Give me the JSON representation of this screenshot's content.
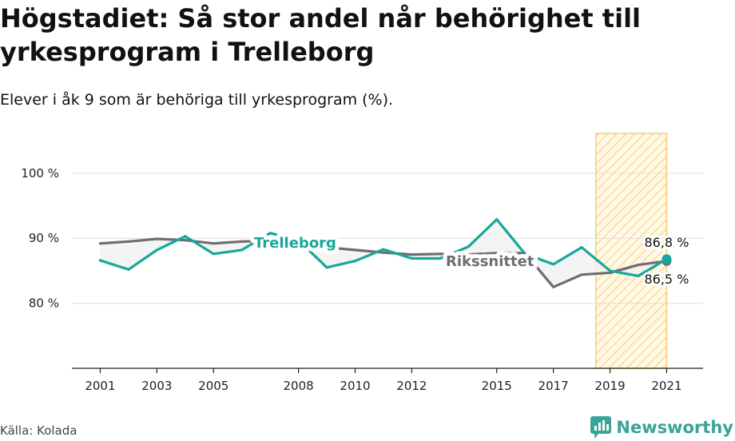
{
  "title": "Högstadiet: Så stor andel når behörighet till yrkesprogram i Trelleborg",
  "subtitle": "Elever i åk 9 som är behöriga till yrkesprogram (%).",
  "source": "Källa: Kolada",
  "brand": {
    "name": "Newsworthy",
    "icon": "newsworthy-logo-icon"
  },
  "colors": {
    "trelleborg": "#16a89a",
    "riksnittet": "#6e6c74",
    "highlight": "#f6cf70",
    "grid": "#dddddd"
  },
  "chart_data": {
    "type": "line",
    "y_unit": "%",
    "ylim": [
      70,
      106
    ],
    "y_ticks": [
      {
        "value": 80,
        "label": "80 %"
      },
      {
        "value": 90,
        "label": "90 %"
      },
      {
        "value": 100,
        "label": "100 %"
      }
    ],
    "xlim": [
      2000,
      2022
    ],
    "x_ticks": [
      2001,
      2003,
      2005,
      2008,
      2010,
      2012,
      2015,
      2017,
      2019,
      2021
    ],
    "grid": true,
    "highlight_range": [
      2018.5,
      2021
    ],
    "series": [
      {
        "name": "Trelleborg",
        "key": "trelleborg",
        "points": [
          {
            "x": 2001,
            "y": 86.6
          },
          {
            "x": 2002,
            "y": 85.2
          },
          {
            "x": 2003,
            "y": 88.2
          },
          {
            "x": 2004,
            "y": 90.3
          },
          {
            "x": 2005,
            "y": 87.6
          },
          {
            "x": 2006,
            "y": 88.2
          },
          {
            "x": 2007,
            "y": 90.8
          },
          {
            "x": 2008,
            "y": 89.7
          },
          {
            "x": 2009,
            "y": 85.5
          },
          {
            "x": 2010,
            "y": 86.5
          },
          {
            "x": 2011,
            "y": 88.3
          },
          {
            "x": 2012,
            "y": 86.9
          },
          {
            "x": 2013,
            "y": 86.9
          },
          {
            "x": 2014,
            "y": 88.7
          },
          {
            "x": 2015,
            "y": 92.9
          },
          {
            "x": 2016,
            "y": 87.6
          },
          {
            "x": 2017,
            "y": 86.0
          },
          {
            "x": 2018,
            "y": 88.6
          },
          {
            "x": 2019,
            "y": 85.0
          },
          {
            "x": 2020,
            "y": 84.2
          },
          {
            "x": 2021,
            "y": 86.8
          }
        ],
        "end_label": "86,8 %"
      },
      {
        "name": "Rikssnittet",
        "key": "riksnittet",
        "points": [
          {
            "x": 2001,
            "y": 89.2
          },
          {
            "x": 2002,
            "y": 89.5
          },
          {
            "x": 2003,
            "y": 89.9
          },
          {
            "x": 2004,
            "y": 89.7
          },
          {
            "x": 2005,
            "y": 89.2
          },
          {
            "x": 2006,
            "y": 89.5
          },
          {
            "x": 2007,
            "y": 89.6
          },
          {
            "x": 2008,
            "y": 89.1
          },
          {
            "x": 2009,
            "y": 88.6
          },
          {
            "x": 2010,
            "y": 88.2
          },
          {
            "x": 2011,
            "y": 87.8
          },
          {
            "x": 2012,
            "y": 87.5
          },
          {
            "x": 2013,
            "y": 87.6
          },
          {
            "x": 2014,
            "y": 87.5
          },
          {
            "x": 2015,
            "y": 87.7
          },
          {
            "x": 2016,
            "y": 87.7
          },
          {
            "x": 2017,
            "y": 82.5
          },
          {
            "x": 2018,
            "y": 84.4
          },
          {
            "x": 2019,
            "y": 84.7
          },
          {
            "x": 2020,
            "y": 85.9
          },
          {
            "x": 2021,
            "y": 86.5
          }
        ],
        "end_label": "86,5 %"
      }
    ]
  }
}
